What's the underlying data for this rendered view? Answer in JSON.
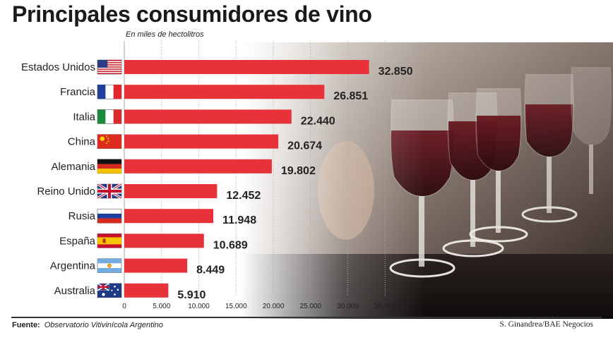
{
  "title": "Principales consumidores de vino",
  "subtitle": "En miles de hectolitros",
  "source_label": "Fuente:",
  "source_text": "Observatorio Vitivinícola Argentino",
  "credit": "S. Ginandrea/BAE Negocios",
  "colors": {
    "bar": "#e8323a",
    "grid": "#aaaaaa",
    "text": "#222222"
  },
  "chart_data": {
    "type": "bar",
    "orientation": "horizontal",
    "categories": [
      "Estados Unidos",
      "Francia",
      "Italia",
      "China",
      "Alemania",
      "Reino Unido",
      "Rusia",
      "España",
      "Argentina",
      "Australia"
    ],
    "values": [
      32850,
      26851,
      22440,
      20674,
      19802,
      12452,
      11948,
      10689,
      8449,
      5910
    ],
    "value_labels": [
      "32.850",
      "26.851",
      "22.440",
      "20.674",
      "19.802",
      "12.452",
      "11.948",
      "10.689",
      "8.449",
      "5.910"
    ],
    "flags": [
      "flag-usa-icon",
      "flag-france-icon",
      "flag-italy-icon",
      "flag-china-icon",
      "flag-germany-icon",
      "flag-uk-icon",
      "flag-russia-icon",
      "flag-spain-icon",
      "flag-argentina-icon",
      "flag-australia-icon"
    ],
    "x_ticks": [
      0,
      5000,
      10000,
      15000,
      20000,
      25000,
      30000,
      35000
    ],
    "x_tick_labels": [
      "0",
      "5.000",
      "10.000",
      "15.000",
      "20.000",
      "25.000",
      "30.000",
      "35.000"
    ],
    "xlim": [
      0,
      35000
    ],
    "grid": true,
    "title": "Principales consumidores de vino",
    "subtitle": "En miles de hectolitros"
  }
}
